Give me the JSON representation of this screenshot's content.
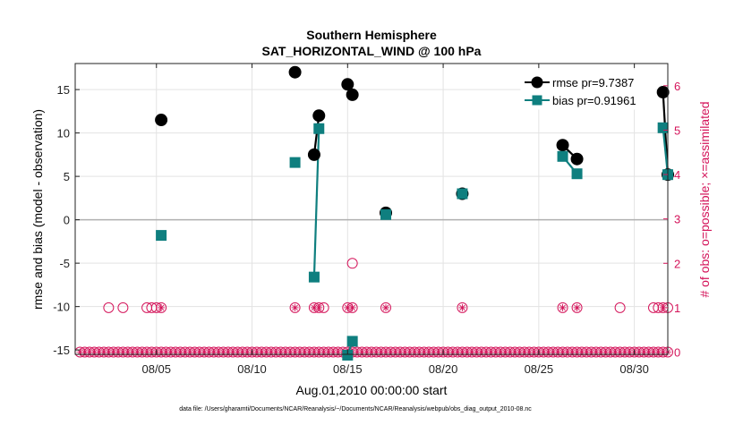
{
  "chart_data": {
    "type": "line",
    "title": "Southern Hemisphere",
    "subtitle": "SAT_HORIZONTAL_WIND @ 100 hPa",
    "xlabel": "Aug.01,2010 00:00:00 start",
    "ylabel_left": "rmse and bias (model - observation)",
    "ylabel_right": "# of obs: o=possible; ×=assimilated",
    "footnote": "data file: /Users/gharamti/Documents/NCAR/Reanalysis/~/Documents/NCAR/Reanalysis/webpub/obs_diag_output_2010-08.nc",
    "xlim": [
      0.75,
      31.75
    ],
    "ylim_left": [
      -15.5,
      18
    ],
    "ylim_right": [
      -0.05,
      6.5
    ],
    "x_ticks": [
      {
        "value": 5,
        "label": "08/05"
      },
      {
        "value": 10,
        "label": "08/10"
      },
      {
        "value": 15,
        "label": "08/15"
      },
      {
        "value": 20,
        "label": "08/20"
      },
      {
        "value": 25,
        "label": "08/25"
      },
      {
        "value": 30,
        "label": "08/30"
      }
    ],
    "y_ticks_left": [
      {
        "value": 15,
        "label": "15"
      },
      {
        "value": 10,
        "label": "10"
      },
      {
        "value": 5,
        "label": "5"
      },
      {
        "value": 0,
        "label": "0"
      },
      {
        "value": -5,
        "label": "-5"
      },
      {
        "value": -10,
        "label": "-10"
      },
      {
        "value": -15,
        "label": "-15"
      }
    ],
    "y_ticks_right": [
      {
        "value": 0,
        "label": "0"
      },
      {
        "value": 1,
        "label": "1"
      },
      {
        "value": 2,
        "label": "2"
      },
      {
        "value": 3,
        "label": "3"
      },
      {
        "value": 4,
        "label": "4"
      },
      {
        "value": 5,
        "label": "5"
      },
      {
        "value": 6,
        "label": "6"
      }
    ],
    "zero_line": 0,
    "series": [
      {
        "name": "rmse",
        "legend": "rmse pr=9.7387",
        "color": "#000000",
        "marker": "circle",
        "points": [
          [
            5.25,
            11.5
          ],
          [
            12.25,
            17.0
          ],
          [
            13.25,
            7.5
          ],
          [
            13.5,
            12.0
          ],
          [
            15.0,
            15.6
          ],
          [
            15.25,
            14.4
          ],
          [
            17.0,
            0.8
          ],
          [
            21.0,
            3.0
          ],
          [
            26.25,
            8.6
          ],
          [
            27.0,
            7.0
          ],
          [
            31.5,
            14.7
          ],
          [
            31.75,
            5.2
          ]
        ]
      },
      {
        "name": "bias",
        "legend": "bias pr=0.91961",
        "color": "#0f7f7f",
        "marker": "square",
        "points": [
          [
            5.25,
            -1.8
          ],
          [
            12.25,
            6.6
          ],
          [
            13.25,
            -6.6
          ],
          [
            13.5,
            10.5
          ],
          [
            15.0,
            -15.6
          ],
          [
            15.25,
            -14.0
          ],
          [
            17.0,
            0.6
          ],
          [
            21.0,
            3.0
          ],
          [
            26.25,
            7.3
          ],
          [
            27.0,
            5.3
          ],
          [
            31.5,
            10.6
          ],
          [
            31.75,
            5.2
          ]
        ]
      }
    ],
    "segments": [
      {
        "series": "rmse",
        "from": [
          13.25,
          7.5
        ],
        "to": [
          13.5,
          12.0
        ]
      },
      {
        "series": "rmse",
        "from": [
          15.0,
          15.6
        ],
        "to": [
          15.25,
          14.4
        ]
      },
      {
        "series": "rmse",
        "from": [
          26.25,
          8.6
        ],
        "to": [
          27.0,
          7.0
        ]
      },
      {
        "series": "rmse",
        "from": [
          31.5,
          14.7
        ],
        "to": [
          31.75,
          5.2
        ]
      },
      {
        "series": "bias",
        "from": [
          13.25,
          -6.6
        ],
        "to": [
          13.5,
          10.5
        ]
      },
      {
        "series": "bias",
        "from": [
          15.0,
          -15.6
        ],
        "to": [
          15.25,
          -14.0
        ]
      },
      {
        "series": "bias",
        "from": [
          26.25,
          7.3
        ],
        "to": [
          27.0,
          5.3
        ]
      },
      {
        "series": "bias",
        "from": [
          31.5,
          10.6
        ],
        "to": [
          31.75,
          5.2
        ]
      }
    ],
    "obs_possible": {
      "color": "#d4145a",
      "at_one": [
        2.5,
        3.25,
        4.5,
        4.75,
        5.0,
        5.25,
        12.25,
        13.25,
        13.5,
        13.75,
        15.0,
        15.25,
        17.0,
        21.0,
        26.25,
        27.0,
        29.25,
        31.0,
        31.25,
        31.5,
        31.75
      ],
      "at_two": [
        15.25
      ]
    },
    "obs_assimilated": {
      "color": "#d4145a",
      "at_one": [
        5.25,
        12.25,
        13.25,
        13.5,
        15.0,
        15.25,
        17.0,
        21.0,
        26.25,
        27.0,
        31.5
      ]
    },
    "zero_count_range": [
      1.0,
      31.75
    ],
    "legend_position": "top-right"
  }
}
